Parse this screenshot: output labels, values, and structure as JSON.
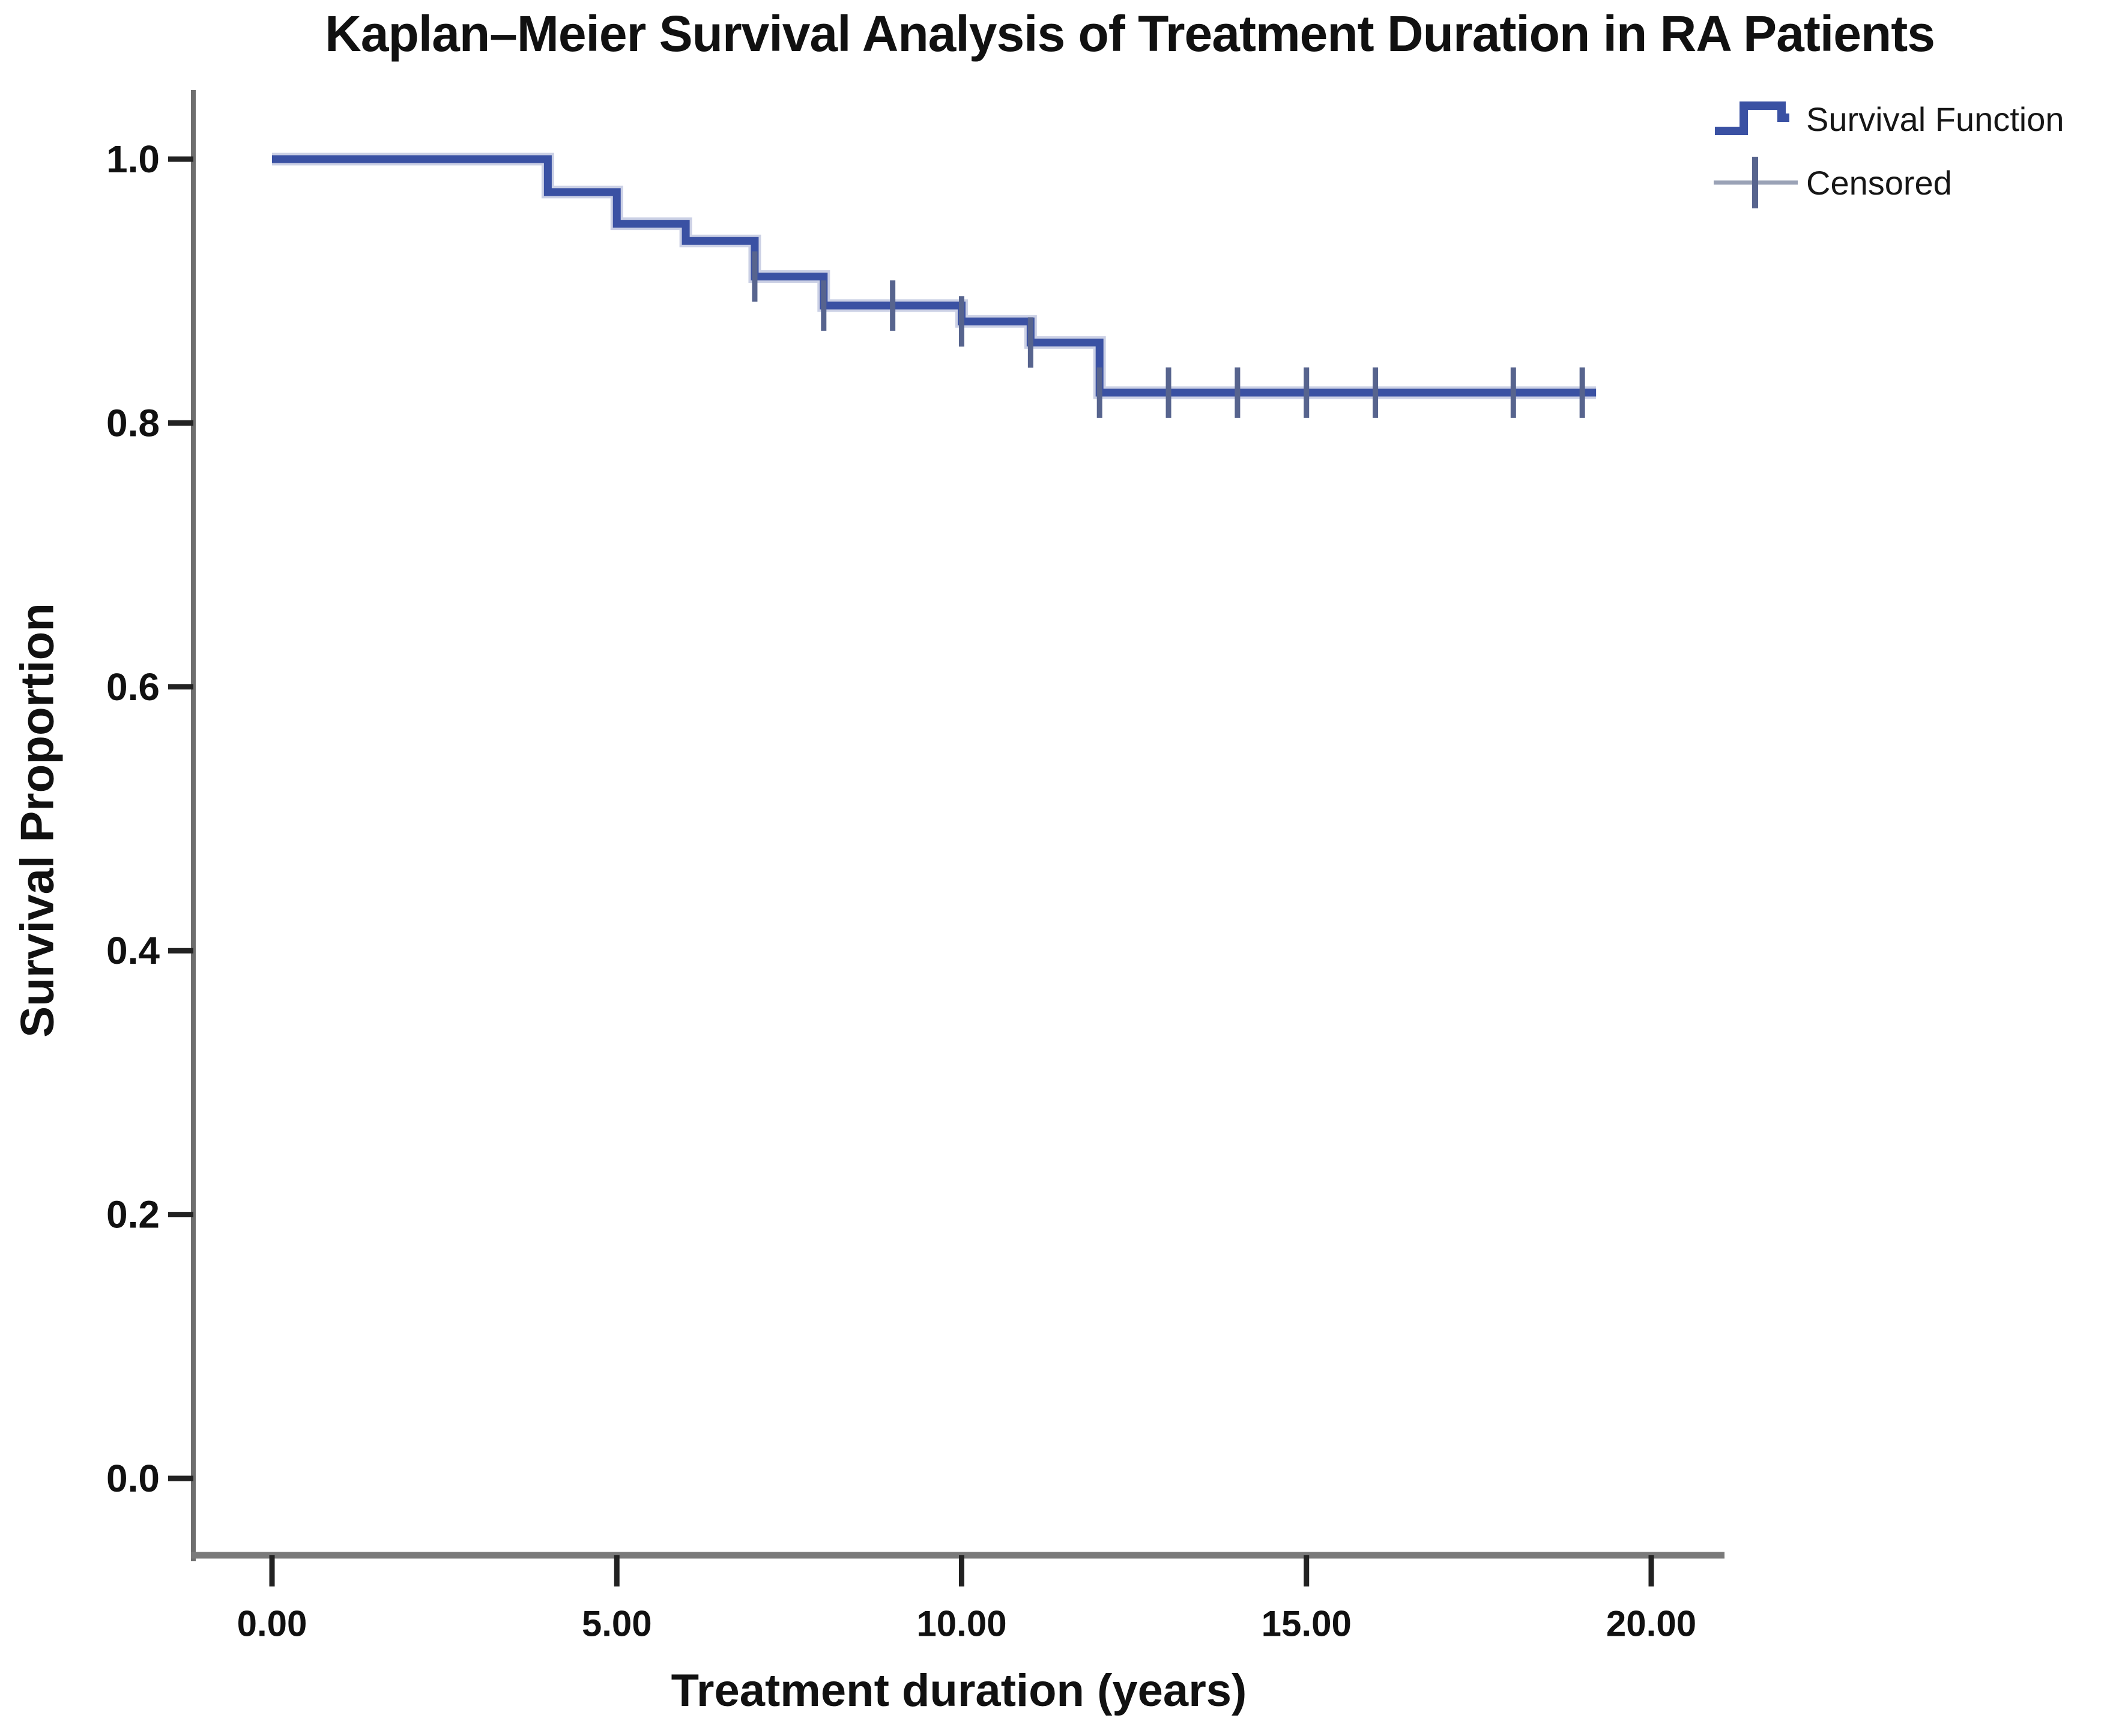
{
  "chart_data": {
    "type": "line",
    "subtype": "kaplan-meier-step-curve",
    "title": "Kaplan–Meier Survival Analysis of Treatment Duration in RA Patients",
    "xlabel": "Treatment duration (years)",
    "ylabel": "Survival Proportion",
    "xlim": [
      0,
      20
    ],
    "ylim": [
      0.0,
      1.0
    ],
    "grid": false,
    "x_ticks": {
      "values": [
        0,
        5,
        10,
        15,
        20
      ],
      "labels": [
        "0.00",
        "5.00",
        "10.00",
        "15.00",
        "20.00"
      ]
    },
    "y_ticks": {
      "values": [
        1.0,
        0.8,
        0.6,
        0.4,
        0.2,
        0.0
      ],
      "labels": [
        "1.0",
        "0.8",
        "0.6",
        "0.4",
        "0.2",
        "0.0"
      ]
    },
    "legend": {
      "position": "top-right",
      "entries": [
        {
          "label": "Survival Function",
          "marker": "step-line"
        },
        {
          "label": "Censored",
          "marker": "plus"
        }
      ]
    },
    "series": [
      {
        "name": "Survival Function",
        "steps": [
          {
            "t_start": 0,
            "t_end": 4,
            "survival": 1.0
          },
          {
            "t_start": 4,
            "t_end": 5,
            "survival": 0.975
          },
          {
            "t_start": 5,
            "t_end": 6,
            "survival": 0.951
          },
          {
            "t_start": 6,
            "t_end": 7,
            "survival": 0.938
          },
          {
            "t_start": 7,
            "t_end": 8,
            "survival": 0.911
          },
          {
            "t_start": 8,
            "t_end": 10,
            "survival": 0.889
          },
          {
            "t_start": 10,
            "t_end": 11,
            "survival": 0.877
          },
          {
            "t_start": 11,
            "t_end": 12,
            "survival": 0.861
          },
          {
            "t_start": 12,
            "t_end": 19.2,
            "survival": 0.823
          }
        ]
      }
    ],
    "censored_points": [
      {
        "t": 7,
        "survival": 0.911
      },
      {
        "t": 8,
        "survival": 0.889
      },
      {
        "t": 9,
        "survival": 0.889
      },
      {
        "t": 10,
        "survival": 0.877
      },
      {
        "t": 11,
        "survival": 0.861
      },
      {
        "t": 12,
        "survival": 0.823
      },
      {
        "t": 13,
        "survival": 0.823
      },
      {
        "t": 14,
        "survival": 0.823
      },
      {
        "t": 15,
        "survival": 0.823
      },
      {
        "t": 16,
        "survival": 0.823
      },
      {
        "t": 18,
        "survival": 0.823
      },
      {
        "t": 19,
        "survival": 0.823
      }
    ],
    "colors": {
      "line": "#3A51A3",
      "line_halo": "#8B97C6",
      "censor": "#57648E",
      "censor_legend_rule": "#9AA2B6",
      "axis": "#6E6E6E",
      "axis_x": "#7A7A7A",
      "tick": "#222222",
      "text": "#111111"
    }
  }
}
